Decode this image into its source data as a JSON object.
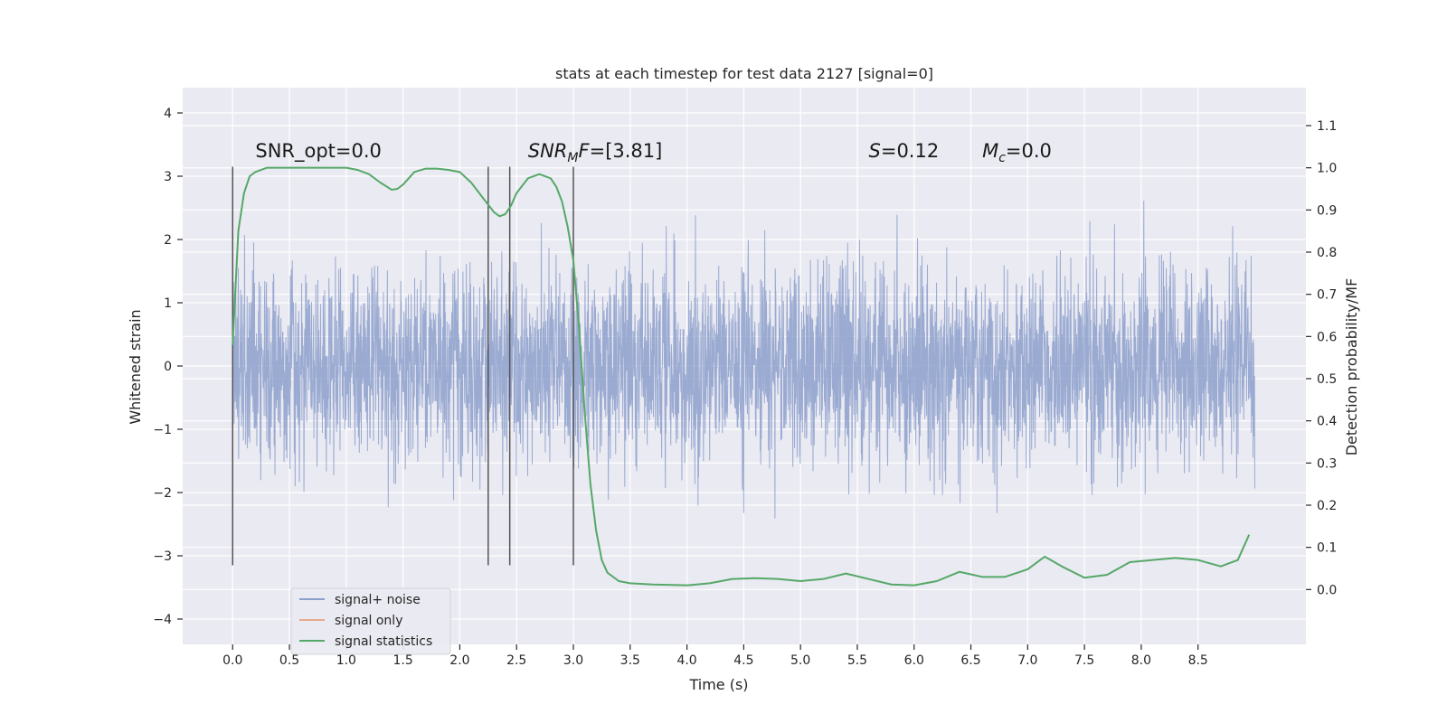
{
  "chart_data": {
    "type": "line",
    "title": "stats at each timestep for test data 2127 [signal=0]",
    "xlabel": "Time (s)",
    "ylabel": "Whitened strain",
    "y2label": "Detection probability/MF",
    "xlim": [
      -0.44,
      9.45
    ],
    "ylim": [
      -4.4,
      4.4
    ],
    "y2lim": [
      -0.13,
      1.19
    ],
    "x_ticks": [
      0.0,
      0.5,
      1.0,
      1.5,
      2.0,
      2.5,
      3.0,
      3.5,
      4.0,
      4.5,
      5.0,
      5.5,
      6.0,
      6.5,
      7.0,
      7.5,
      8.0,
      8.5
    ],
    "x_tick_labels": [
      "0.0",
      "0.5",
      "1.0",
      "1.5",
      "2.0",
      "2.5",
      "3.0",
      "3.5",
      "4.0",
      "4.5",
      "5.0",
      "5.5",
      "6.0",
      "6.5",
      "7.0",
      "7.5",
      "8.0",
      "8.5"
    ],
    "y_ticks": [
      -4,
      -3,
      -2,
      -1,
      0,
      1,
      2,
      3,
      4
    ],
    "y_tick_labels": [
      "−4",
      "−3",
      "−2",
      "−1",
      "0",
      "1",
      "2",
      "3",
      "4"
    ],
    "y2_ticks": [
      0.0,
      0.1,
      0.2,
      0.3,
      0.4,
      0.5,
      0.6,
      0.7,
      0.8,
      0.9,
      1.0,
      1.1
    ],
    "y2_tick_labels": [
      "0.0",
      "0.1",
      "0.2",
      "0.3",
      "0.4",
      "0.5",
      "0.6",
      "0.7",
      "0.8",
      "0.9",
      "1.0",
      "1.1"
    ],
    "grid": true,
    "legend_position": "lower-left",
    "series": [
      {
        "name": "signal+ noise",
        "color": "#8c9fcb",
        "axis": "left",
        "style": "dense noise, range approx [-4.0, 4.0]",
        "x_range": [
          0.0,
          9.0
        ]
      },
      {
        "name": "signal only",
        "color": "#e8a88c",
        "axis": "left",
        "values": []
      },
      {
        "name": "signal statistics",
        "color": "#55a868",
        "axis": "right",
        "x": [
          0.0,
          0.05,
          0.1,
          0.15,
          0.2,
          0.3,
          0.45,
          0.6,
          0.8,
          1.0,
          1.1,
          1.2,
          1.3,
          1.4,
          1.45,
          1.5,
          1.55,
          1.6,
          1.7,
          1.8,
          1.9,
          2.0,
          2.1,
          2.2,
          2.3,
          2.35,
          2.4,
          2.45,
          2.5,
          2.6,
          2.7,
          2.8,
          2.85,
          2.9,
          2.95,
          3.0,
          3.05,
          3.1,
          3.15,
          3.2,
          3.25,
          3.3,
          3.4,
          3.5,
          3.7,
          4.0,
          4.2,
          4.4,
          4.6,
          4.8,
          5.0,
          5.2,
          5.4,
          5.6,
          5.8,
          6.0,
          6.2,
          6.4,
          6.6,
          6.8,
          7.0,
          7.15,
          7.3,
          7.5,
          7.7,
          7.9,
          8.1,
          8.3,
          8.5,
          8.7,
          8.85,
          8.95
        ],
        "y": [
          0.58,
          0.85,
          0.94,
          0.98,
          0.99,
          1.0,
          1.0,
          1.0,
          1.0,
          1.0,
          0.995,
          0.985,
          0.965,
          0.948,
          0.95,
          0.96,
          0.975,
          0.99,
          0.998,
          0.998,
          0.995,
          0.99,
          0.965,
          0.93,
          0.895,
          0.885,
          0.89,
          0.91,
          0.94,
          0.975,
          0.985,
          0.975,
          0.955,
          0.92,
          0.86,
          0.78,
          0.62,
          0.42,
          0.25,
          0.14,
          0.07,
          0.04,
          0.02,
          0.015,
          0.012,
          0.01,
          0.015,
          0.025,
          0.027,
          0.025,
          0.02,
          0.025,
          0.038,
          0.025,
          0.012,
          0.01,
          0.02,
          0.042,
          0.03,
          0.03,
          0.048,
          0.078,
          0.055,
          0.028,
          0.035,
          0.065,
          0.07,
          0.075,
          0.07,
          0.055,
          0.07,
          0.13
        ]
      }
    ],
    "vlines": [
      {
        "x": 0.0,
        "ymin": -3.15,
        "ymax": 3.15
      },
      {
        "x": 2.25,
        "ymin": -3.15,
        "ymax": 3.15
      },
      {
        "x": 2.44,
        "ymin": -3.15,
        "ymax": 3.15
      },
      {
        "x": 3.0,
        "ymin": -3.15,
        "ymax": 3.15
      }
    ],
    "annotations": [
      {
        "x": 0.2,
        "y": 3.3,
        "text": "SNR_opt=0.0",
        "kind": "plain"
      },
      {
        "x": 2.6,
        "y": 3.3,
        "text": "SNR_MF=[3.81]",
        "kind": "snr_mf",
        "base": "SNR",
        "sub": "M",
        "rest": "F=[3.81]"
      },
      {
        "x": 5.6,
        "y": 3.3,
        "text": "S=0.12",
        "kind": "italic_prefix",
        "base": "S",
        "rest": "=0.12"
      },
      {
        "x": 6.6,
        "y": 3.3,
        "text": "M_c=0.0",
        "kind": "italic_sub",
        "base": "M",
        "sub": "c",
        "rest": "=0.0"
      }
    ]
  }
}
